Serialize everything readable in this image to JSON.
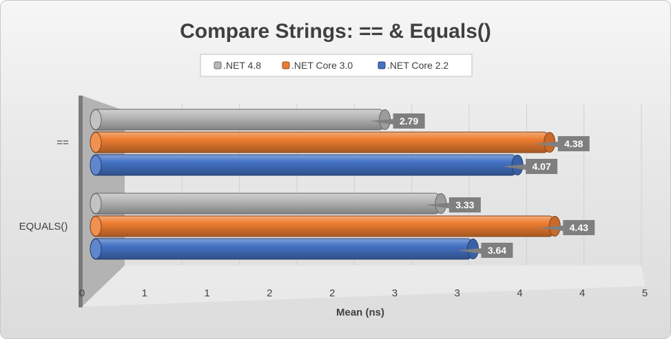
{
  "colors": {
    "net48": "#b8b8b8",
    "netcore30": "#ed7d31",
    "netcore22": "#4472c4",
    "label_box": "#7f7f7f"
  },
  "chart_data": {
    "type": "bar",
    "orientation": "horizontal",
    "style": "3d-cylinder",
    "title": "Compare Strings: == & Equals()",
    "categories": [
      "==",
      "EQUALS()"
    ],
    "series": [
      {
        "name": ".NET 4.8",
        "color": "#b8b8b8",
        "values": [
          2.79,
          3.33
        ]
      },
      {
        "name": ".NET Core 3.0",
        "color": "#ed7d31",
        "values": [
          4.38,
          4.43
        ]
      },
      {
        "name": ".NET Core 2.2",
        "color": "#4472c4",
        "values": [
          4.07,
          3.64
        ]
      }
    ],
    "xlabel": "Mean (ns)",
    "ylabel": "",
    "x_tick_labels": [
      "0",
      "1",
      "1",
      "2",
      "2",
      "3",
      "3",
      "4",
      "4",
      "5"
    ],
    "xlim": [
      0,
      5
    ],
    "legend_position": "top",
    "grid": true
  }
}
